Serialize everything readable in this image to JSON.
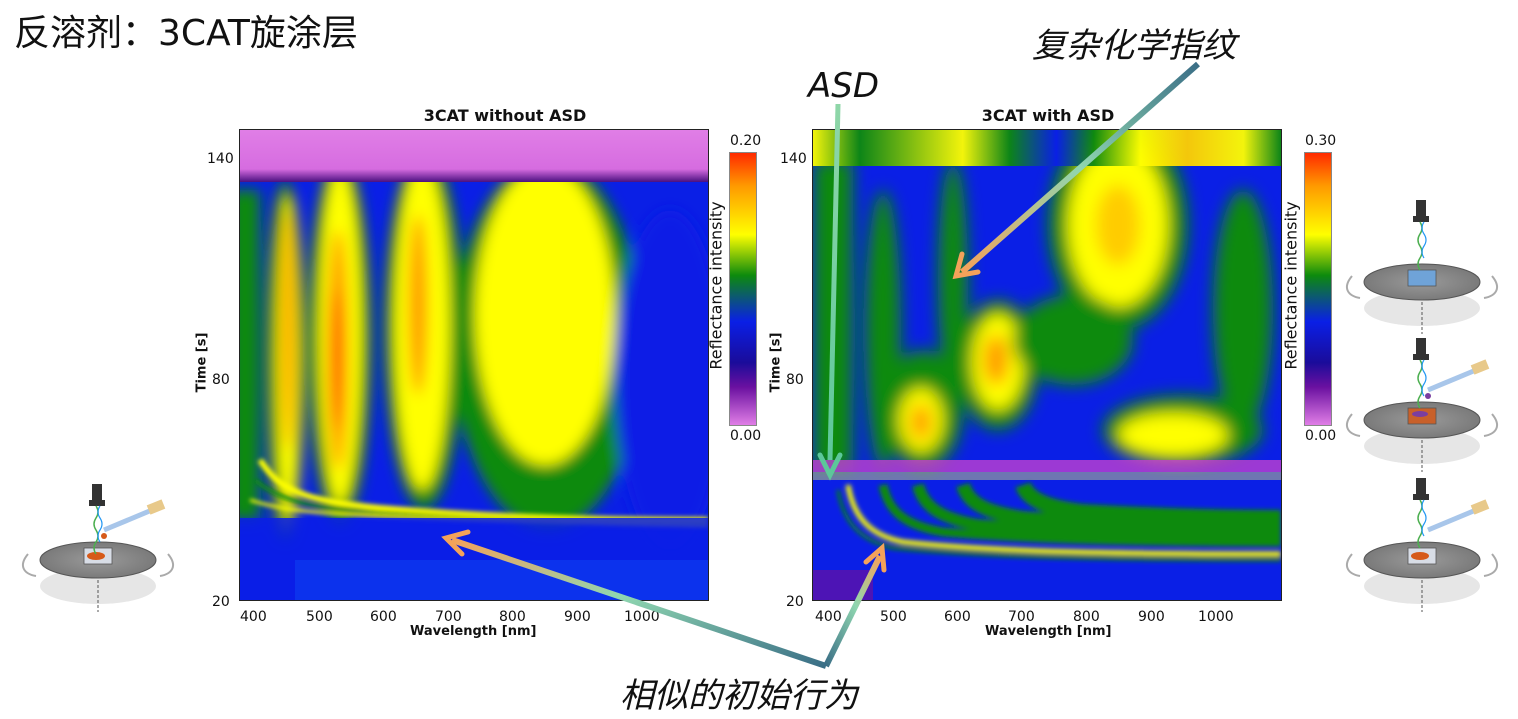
{
  "slide": {
    "title": "反溶剂：3CAT旋涂层"
  },
  "callouts": {
    "asd": "ASD",
    "fingerprint": "复杂化学指纹",
    "similar": "相似的初始行为"
  },
  "colors": {
    "purple_low": "#e07ee6",
    "blue": "#0a1fe6",
    "green": "#0d8a0d",
    "yellow": "#ffff00",
    "orange": "#ff9900",
    "red": "#ff2a00",
    "arrow_start": "#f4a25a",
    "arrow_end": "#3a6e86"
  },
  "chart_data": [
    {
      "type": "heatmap",
      "title": "3CAT without ASD",
      "xlabel": "Wavelength [nm]",
      "ylabel": "Time [s]",
      "x_ticks": [
        "400",
        "500",
        "600",
        "700",
        "800",
        "900",
        "1000"
      ],
      "y_ticks": [
        "140",
        "80",
        "20"
      ],
      "xlim": [
        380,
        1100
      ],
      "ylim": [
        20,
        148
      ],
      "colorbar": {
        "label": "Reflectance intensity",
        "min": "0.00",
        "max": "0.20"
      }
    },
    {
      "type": "heatmap",
      "title": "3CAT with ASD",
      "xlabel": "Wavelength [nm]",
      "ylabel": "Time [s]",
      "x_ticks": [
        "400",
        "500",
        "600",
        "700",
        "800",
        "900",
        "1000"
      ],
      "y_ticks": [
        "140",
        "80",
        "20"
      ],
      "xlim": [
        380,
        1100
      ],
      "ylim": [
        20,
        148
      ],
      "colorbar": {
        "label": "Reflectance intensity",
        "min": "0.00",
        "max": "0.30"
      }
    }
  ]
}
